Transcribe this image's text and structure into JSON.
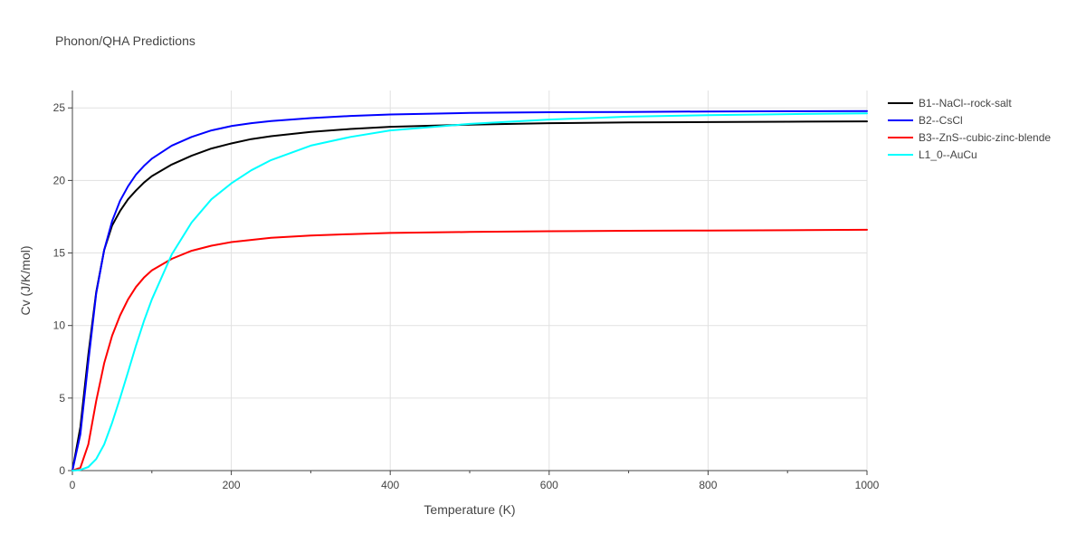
{
  "chart_data": {
    "type": "line",
    "title": "Phonon/QHA Predictions",
    "xlabel": "Temperature (K)",
    "ylabel": "Cv (J/K/mol)",
    "xlim": [
      0,
      1000
    ],
    "ylim": [
      0,
      26.2
    ],
    "xticks": [
      0,
      200,
      400,
      600,
      800,
      1000
    ],
    "yticks": [
      0,
      5,
      10,
      15,
      20,
      25
    ],
    "x_minor_ticks": [
      100,
      300,
      500,
      700,
      900
    ],
    "grid": true,
    "legend_position": "top-right",
    "series": [
      {
        "name": "B1--NaCl--rock-salt",
        "color": "#000000",
        "points": [
          [
            0,
            0
          ],
          [
            10,
            3.0
          ],
          [
            20,
            8.0
          ],
          [
            30,
            12.3
          ],
          [
            40,
            15.2
          ],
          [
            50,
            16.9
          ],
          [
            60,
            17.9
          ],
          [
            70,
            18.7
          ],
          [
            80,
            19.3
          ],
          [
            90,
            19.85
          ],
          [
            100,
            20.3
          ],
          [
            125,
            21.1
          ],
          [
            150,
            21.7
          ],
          [
            175,
            22.2
          ],
          [
            200,
            22.55
          ],
          [
            225,
            22.85
          ],
          [
            250,
            23.05
          ],
          [
            300,
            23.35
          ],
          [
            350,
            23.55
          ],
          [
            400,
            23.7
          ],
          [
            500,
            23.85
          ],
          [
            600,
            23.95
          ],
          [
            700,
            24.0
          ],
          [
            800,
            24.02
          ],
          [
            900,
            24.05
          ],
          [
            1000,
            24.07
          ]
        ]
      },
      {
        "name": "B2--CsCl",
        "color": "#0000ff",
        "points": [
          [
            0,
            0
          ],
          [
            10,
            2.5
          ],
          [
            20,
            7.5
          ],
          [
            30,
            12.2
          ],
          [
            40,
            15.2
          ],
          [
            50,
            17.2
          ],
          [
            60,
            18.6
          ],
          [
            70,
            19.6
          ],
          [
            80,
            20.4
          ],
          [
            90,
            21.0
          ],
          [
            100,
            21.5
          ],
          [
            125,
            22.4
          ],
          [
            150,
            23.0
          ],
          [
            175,
            23.45
          ],
          [
            200,
            23.75
          ],
          [
            225,
            23.95
          ],
          [
            250,
            24.1
          ],
          [
            300,
            24.3
          ],
          [
            350,
            24.45
          ],
          [
            400,
            24.55
          ],
          [
            500,
            24.65
          ],
          [
            600,
            24.7
          ],
          [
            700,
            24.72
          ],
          [
            800,
            24.75
          ],
          [
            900,
            24.77
          ],
          [
            1000,
            24.78
          ]
        ]
      },
      {
        "name": "B3--ZnS--cubic-zinc-blende",
        "color": "#ff0000",
        "points": [
          [
            0,
            0
          ],
          [
            10,
            0.2
          ],
          [
            20,
            1.8
          ],
          [
            30,
            4.8
          ],
          [
            40,
            7.4
          ],
          [
            50,
            9.3
          ],
          [
            60,
            10.7
          ],
          [
            70,
            11.8
          ],
          [
            80,
            12.65
          ],
          [
            90,
            13.3
          ],
          [
            100,
            13.8
          ],
          [
            125,
            14.6
          ],
          [
            150,
            15.15
          ],
          [
            175,
            15.5
          ],
          [
            200,
            15.75
          ],
          [
            225,
            15.9
          ],
          [
            250,
            16.05
          ],
          [
            300,
            16.2
          ],
          [
            350,
            16.3
          ],
          [
            400,
            16.38
          ],
          [
            500,
            16.45
          ],
          [
            600,
            16.5
          ],
          [
            700,
            16.53
          ],
          [
            800,
            16.55
          ],
          [
            900,
            16.57
          ],
          [
            1000,
            16.6
          ]
        ]
      },
      {
        "name": "L1_0--AuCu",
        "color": "#00ffff",
        "points": [
          [
            0,
            0
          ],
          [
            10,
            0.05
          ],
          [
            20,
            0.25
          ],
          [
            30,
            0.8
          ],
          [
            40,
            1.8
          ],
          [
            50,
            3.3
          ],
          [
            60,
            5.0
          ],
          [
            70,
            6.8
          ],
          [
            80,
            8.6
          ],
          [
            90,
            10.3
          ],
          [
            100,
            11.8
          ],
          [
            125,
            14.9
          ],
          [
            150,
            17.1
          ],
          [
            175,
            18.7
          ],
          [
            200,
            19.8
          ],
          [
            225,
            20.7
          ],
          [
            250,
            21.4
          ],
          [
            300,
            22.4
          ],
          [
            350,
            23.0
          ],
          [
            400,
            23.45
          ],
          [
            500,
            23.9
          ],
          [
            600,
            24.2
          ],
          [
            700,
            24.4
          ],
          [
            800,
            24.5
          ],
          [
            900,
            24.57
          ],
          [
            1000,
            24.62
          ]
        ]
      }
    ]
  }
}
